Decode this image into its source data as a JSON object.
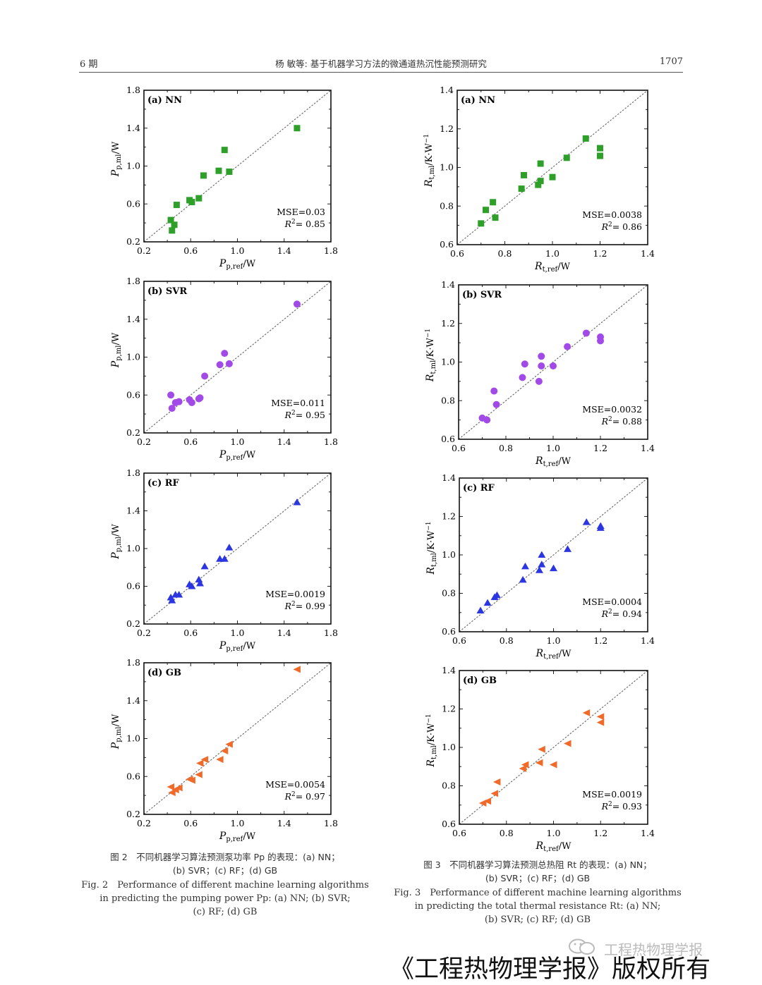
{
  "header": {
    "left": "6 期",
    "center": "杨 敏等: 基于机器学习方法的微通道热沉性能预测研究",
    "right": "1707"
  },
  "chart_data": [
    {
      "id": "p-nn",
      "type": "scatter",
      "figure": "2",
      "panel": "(a) NN",
      "xlabel": "Pp,ref/W",
      "ylabel": "Pp,ml/W",
      "xlim": [
        0.2,
        1.8
      ],
      "ylim": [
        0.2,
        1.8
      ],
      "xticks": [
        "0.2",
        "0.6",
        "1.0",
        "1.4",
        "1.8"
      ],
      "yticks": [
        "0.2",
        "0.6",
        "1.0",
        "1.4",
        "1.8"
      ],
      "marker": "square",
      "color": "#2ea02a",
      "mse": "MSE=0.03",
      "r2": "= 0.85",
      "points": [
        [
          0.43,
          0.43
        ],
        [
          0.44,
          0.32
        ],
        [
          0.46,
          0.38
        ],
        [
          0.48,
          0.59
        ],
        [
          0.59,
          0.64
        ],
        [
          0.61,
          0.62
        ],
        [
          0.67,
          0.66
        ],
        [
          0.71,
          0.9
        ],
        [
          0.84,
          0.95
        ],
        [
          0.89,
          1.17
        ],
        [
          0.93,
          0.94
        ],
        [
          1.51,
          1.4
        ]
      ]
    },
    {
      "id": "p-svr",
      "type": "scatter",
      "figure": "2",
      "panel": "(b) SVR",
      "xlabel": "Pp,ref/W",
      "ylabel": "Pp,ml/W",
      "xlim": [
        0.2,
        1.8
      ],
      "ylim": [
        0.2,
        1.8
      ],
      "xticks": [
        "0.2",
        "0.6",
        "1.0",
        "1.4",
        "1.8"
      ],
      "yticks": [
        "0.2",
        "0.6",
        "1.0",
        "1.4",
        "1.8"
      ],
      "marker": "circle",
      "color": "#a24ae8",
      "mse": "MSE=0.011",
      "r2": "= 0.95",
      "points": [
        [
          0.43,
          0.6
        ],
        [
          0.44,
          0.46
        ],
        [
          0.47,
          0.52
        ],
        [
          0.5,
          0.53
        ],
        [
          0.59,
          0.55
        ],
        [
          0.61,
          0.52
        ],
        [
          0.67,
          0.56
        ],
        [
          0.68,
          0.57
        ],
        [
          0.72,
          0.8
        ],
        [
          0.85,
          0.92
        ],
        [
          0.89,
          1.04
        ],
        [
          0.93,
          0.93
        ],
        [
          1.51,
          1.56
        ]
      ]
    },
    {
      "id": "p-rf",
      "type": "scatter",
      "figure": "2",
      "panel": "(c) RF",
      "xlabel": "Pp,ref/W",
      "ylabel": "Pp,ml/W",
      "xlim": [
        0.2,
        1.8
      ],
      "ylim": [
        0.2,
        1.8
      ],
      "xticks": [
        "0.2",
        "0.6",
        "1.0",
        "1.4",
        "1.8"
      ],
      "yticks": [
        "0.2",
        "0.6",
        "1.0",
        "1.4",
        "1.8"
      ],
      "marker": "triangle-up",
      "color": "#2b36e0",
      "mse": "MSE=0.0019",
      "r2": "= 0.99",
      "points": [
        [
          0.43,
          0.48
        ],
        [
          0.44,
          0.45
        ],
        [
          0.47,
          0.51
        ],
        [
          0.5,
          0.51
        ],
        [
          0.59,
          0.62
        ],
        [
          0.61,
          0.6
        ],
        [
          0.67,
          0.67
        ],
        [
          0.68,
          0.63
        ],
        [
          0.72,
          0.81
        ],
        [
          0.85,
          0.89
        ],
        [
          0.89,
          0.89
        ],
        [
          0.93,
          1.01
        ],
        [
          1.51,
          1.49
        ]
      ]
    },
    {
      "id": "p-gb",
      "type": "scatter",
      "figure": "2",
      "panel": "(d) GB",
      "xlabel": "Pp,ref/W",
      "ylabel": "Pp,ml/W",
      "xlim": [
        0.2,
        1.8
      ],
      "ylim": [
        0.2,
        1.8
      ],
      "xticks": [
        "0.2",
        "0.6",
        "1.0",
        "1.4",
        "1.8"
      ],
      "yticks": [
        "0.2",
        "0.6",
        "1.0",
        "1.4",
        "1.8"
      ],
      "marker": "triangle-left",
      "color": "#f06a2a",
      "mse": "MSE=0.0054",
      "r2": "= 0.97",
      "points": [
        [
          0.43,
          0.49
        ],
        [
          0.44,
          0.43
        ],
        [
          0.47,
          0.46
        ],
        [
          0.5,
          0.48
        ],
        [
          0.59,
          0.57
        ],
        [
          0.61,
          0.56
        ],
        [
          0.67,
          0.62
        ],
        [
          0.68,
          0.74
        ],
        [
          0.72,
          0.78
        ],
        [
          0.85,
          0.78
        ],
        [
          0.89,
          0.87
        ],
        [
          0.93,
          0.94
        ],
        [
          1.51,
          1.73
        ]
      ]
    },
    {
      "id": "r-nn",
      "type": "scatter",
      "figure": "3",
      "panel": "(a) NN",
      "xlabel": "Rt,ref/W",
      "ylabel": "Rt,ml/K·W⁻¹",
      "xlim": [
        0.6,
        1.4
      ],
      "ylim": [
        0.6,
        1.4
      ],
      "xticks": [
        "0.6",
        "0.8",
        "1.0",
        "1.2",
        "1.4"
      ],
      "yticks": [
        "0.6",
        "0.8",
        "1.0",
        "1.2",
        "1.4"
      ],
      "marker": "square",
      "color": "#2ea02a",
      "mse": "MSE=0.0038",
      "r2": "= 0.86",
      "points": [
        [
          0.7,
          0.71
        ],
        [
          0.72,
          0.78
        ],
        [
          0.75,
          0.82
        ],
        [
          0.76,
          0.74
        ],
        [
          0.87,
          0.89
        ],
        [
          0.88,
          0.96
        ],
        [
          0.94,
          0.91
        ],
        [
          0.95,
          0.93
        ],
        [
          0.95,
          1.02
        ],
        [
          1.0,
          0.95
        ],
        [
          1.06,
          1.05
        ],
        [
          1.14,
          1.15
        ],
        [
          1.2,
          1.1
        ],
        [
          1.2,
          1.06
        ]
      ]
    },
    {
      "id": "r-svr",
      "type": "scatter",
      "figure": "3",
      "panel": "(b) SVR",
      "xlabel": "Rt,ref/W",
      "ylabel": "Rt,ml/K·W⁻¹",
      "xlim": [
        0.6,
        1.4
      ],
      "ylim": [
        0.6,
        1.4
      ],
      "xticks": [
        "0.6",
        "0.8",
        "1.0",
        "1.2",
        "1.4"
      ],
      "yticks": [
        "0.6",
        "0.8",
        "1.0",
        "1.2",
        "1.4"
      ],
      "marker": "circle",
      "color": "#a24ae8",
      "mse": "MSE=0.0032",
      "r2": "= 0.88",
      "points": [
        [
          0.7,
          0.71
        ],
        [
          0.72,
          0.7
        ],
        [
          0.75,
          0.85
        ],
        [
          0.76,
          0.78
        ],
        [
          0.87,
          0.92
        ],
        [
          0.88,
          0.99
        ],
        [
          0.94,
          0.9
        ],
        [
          0.95,
          0.98
        ],
        [
          0.95,
          1.03
        ],
        [
          1.0,
          0.98
        ],
        [
          1.06,
          1.08
        ],
        [
          1.14,
          1.15
        ],
        [
          1.2,
          1.13
        ],
        [
          1.2,
          1.11
        ]
      ]
    },
    {
      "id": "r-rf",
      "type": "scatter",
      "figure": "3",
      "panel": "(c) RF",
      "xlabel": "Rt,ref/W",
      "ylabel": "Rt,ml/K·W⁻¹",
      "xlim": [
        0.6,
        1.4
      ],
      "ylim": [
        0.6,
        1.4
      ],
      "xticks": [
        "0.6",
        "0.8",
        "1.0",
        "1.2",
        "1.4"
      ],
      "yticks": [
        "0.6",
        "0.8",
        "1.0",
        "1.2",
        "1.4"
      ],
      "marker": "triangle-up",
      "color": "#2b36e0",
      "mse": "MSE=0.0004",
      "r2": "= 0.94",
      "points": [
        [
          0.69,
          0.71
        ],
        [
          0.72,
          0.75
        ],
        [
          0.75,
          0.78
        ],
        [
          0.76,
          0.79
        ],
        [
          0.87,
          0.87
        ],
        [
          0.88,
          0.94
        ],
        [
          0.94,
          0.92
        ],
        [
          0.95,
          0.95
        ],
        [
          0.95,
          1.0
        ],
        [
          1.0,
          0.93
        ],
        [
          1.06,
          1.03
        ],
        [
          1.14,
          1.17
        ],
        [
          1.2,
          1.14
        ],
        [
          1.2,
          1.15
        ]
      ]
    },
    {
      "id": "r-gb",
      "type": "scatter",
      "figure": "3",
      "panel": "(d) GB",
      "xlabel": "Rt,ref/W",
      "ylabel": "Rt,ml/K·W⁻¹",
      "xlim": [
        0.6,
        1.4
      ],
      "ylim": [
        0.6,
        1.4
      ],
      "xticks": [
        "0.6",
        "0.8",
        "1.0",
        "1.2",
        "1.4"
      ],
      "yticks": [
        "0.6",
        "0.8",
        "1.0",
        "1.2",
        "1.4"
      ],
      "marker": "triangle-left",
      "color": "#f06a2a",
      "mse": "MSE=0.0019",
      "r2": "= 0.93",
      "points": [
        [
          0.7,
          0.71
        ],
        [
          0.72,
          0.72
        ],
        [
          0.75,
          0.76
        ],
        [
          0.76,
          0.82
        ],
        [
          0.87,
          0.89
        ],
        [
          0.88,
          0.91
        ],
        [
          0.94,
          0.92
        ],
        [
          0.95,
          0.99
        ],
        [
          1.0,
          0.91
        ],
        [
          1.06,
          1.02
        ],
        [
          1.14,
          1.18
        ],
        [
          1.2,
          1.16
        ],
        [
          1.2,
          1.13
        ]
      ]
    }
  ],
  "captions": {
    "fig2": {
      "zh_1": "图 2　不同机器学习算法预测泵功率 Pp 的表现：(a) NN；",
      "zh_2": "(b) SVR；(c) RF；(d) GB",
      "en_1": "Fig. 2　Performance of different machine learning algorithms",
      "en_2": "in predicting the pumping power Pp: (a) NN; (b) SVR;",
      "en_3": "(c) RF; (d) GB"
    },
    "fig3": {
      "zh_1": "图 3　不同机器学习算法预测总热阻 Rt 的表现：(a) NN；",
      "zh_2": "(b) SVR；(c) RF；(d) GB",
      "en_1": "Fig. 3　Performance of different machine learning algorithms",
      "en_2": "in predicting the total thermal resistance Rt: (a) NN;",
      "en_3": "(b) SVR; (c) RF; (d) GB"
    }
  },
  "watermark": {
    "account": "工程热物理学报",
    "copyright": "《工程热物理学报》版权所有"
  }
}
